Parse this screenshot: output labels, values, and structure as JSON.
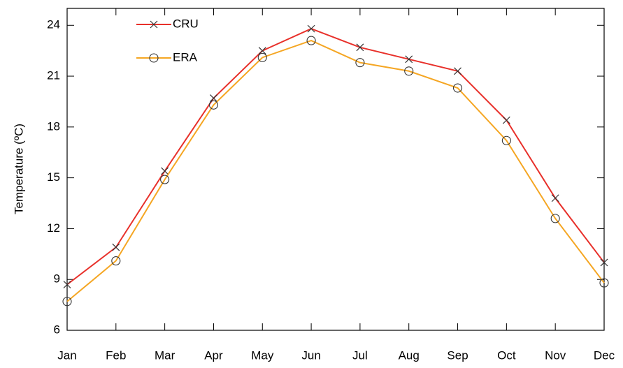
{
  "chart_data": {
    "type": "line",
    "y_label": "Temperature (ºC)",
    "categories": [
      "Jan",
      "Feb",
      "Mar",
      "Apr",
      "May",
      "Jun",
      "Jul",
      "Aug",
      "Sep",
      "Oct",
      "Nov",
      "Dec"
    ],
    "series": [
      {
        "name": "CRU",
        "color": "#e8302a",
        "marker": "x",
        "values": [
          8.7,
          10.9,
          15.4,
          19.7,
          22.5,
          23.8,
          22.7,
          22.0,
          21.3,
          18.4,
          13.8,
          10.0
        ]
      },
      {
        "name": "ERA",
        "color": "#f5a623",
        "marker": "circle",
        "values": [
          7.7,
          10.1,
          14.9,
          19.3,
          22.1,
          23.1,
          21.8,
          21.3,
          20.3,
          17.2,
          12.6,
          8.8
        ]
      }
    ],
    "ylim": [
      6,
      25
    ],
    "yticks": [
      6,
      9,
      12,
      15,
      18,
      21,
      24
    ],
    "legend": "upper left"
  }
}
